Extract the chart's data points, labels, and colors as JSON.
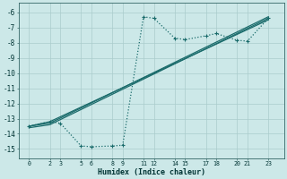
{
  "xlabel": "Humidex (Indice chaleur)",
  "bg_color": "#cce8e8",
  "grid_color": "#aacccc",
  "line_color": "#1a6b6b",
  "xlim": [
    -1,
    24.5
  ],
  "ylim": [
    -15.6,
    -5.4
  ],
  "yticks": [
    -15,
    -14,
    -13,
    -12,
    -11,
    -10,
    -9,
    -8,
    -7,
    -6
  ],
  "xticks": [
    0,
    2,
    3,
    5,
    6,
    8,
    9,
    11,
    12,
    14,
    15,
    17,
    18,
    20,
    21,
    23
  ],
  "xtick_labels": [
    "0",
    "2",
    "3",
    "5",
    "6",
    "8",
    "9",
    "11",
    "12",
    "14",
    "15",
    "17",
    "18",
    "20",
    "21",
    "23"
  ],
  "line_dotted": {
    "x": [
      0,
      2,
      3,
      5,
      6,
      8,
      9,
      11,
      12,
      14,
      15,
      17,
      18,
      20,
      21,
      23
    ],
    "y": [
      -13.5,
      -13.2,
      -13.3,
      -14.8,
      -14.85,
      -14.8,
      -14.75,
      -6.3,
      -6.4,
      -7.7,
      -7.8,
      -7.55,
      -7.4,
      -7.85,
      -7.9,
      -6.4
    ]
  },
  "line_solid1": {
    "x": [
      0,
      2,
      23
    ],
    "y": [
      -13.5,
      -13.3,
      -6.3
    ]
  },
  "line_solid2": {
    "x": [
      0,
      2,
      23
    ],
    "y": [
      -13.5,
      -13.2,
      -6.5
    ]
  },
  "line_solid3": {
    "x": [
      0,
      2,
      23
    ],
    "y": [
      -13.6,
      -13.4,
      -6.4
    ]
  }
}
